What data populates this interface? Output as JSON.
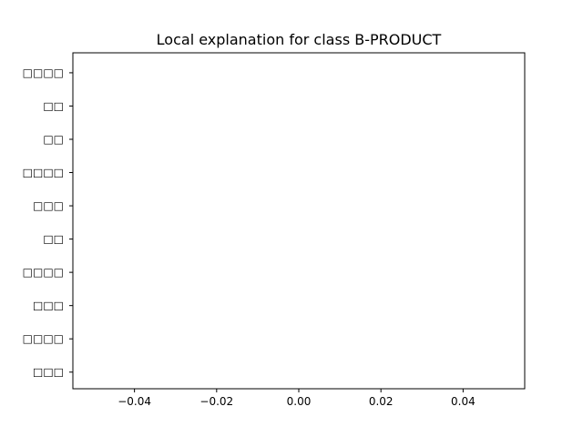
{
  "chart_data": {
    "type": "bar",
    "orientation": "horizontal",
    "title": "Local explanation for class B-PRODUCT",
    "xlabel": "",
    "ylabel": "",
    "categories": [
      "□□□□",
      "□□",
      "□□",
      "□□□□",
      "□□□",
      "□□",
      "□□□□",
      "□□□",
      "□□□□",
      "□□□"
    ],
    "values": [
      0,
      0,
      0,
      0,
      0,
      0,
      0,
      0,
      0,
      0
    ],
    "xlim": [
      -0.055,
      0.055
    ],
    "xticks": [
      -0.04,
      -0.02,
      0.0,
      0.02,
      0.04
    ],
    "xtick_labels": [
      "−0.04",
      "−0.02",
      "0.00",
      "0.02",
      "0.04"
    ],
    "grid": false,
    "legend": "none",
    "colors": {
      "frame": "#000000",
      "text": "#000000",
      "background": "#ffffff"
    }
  }
}
